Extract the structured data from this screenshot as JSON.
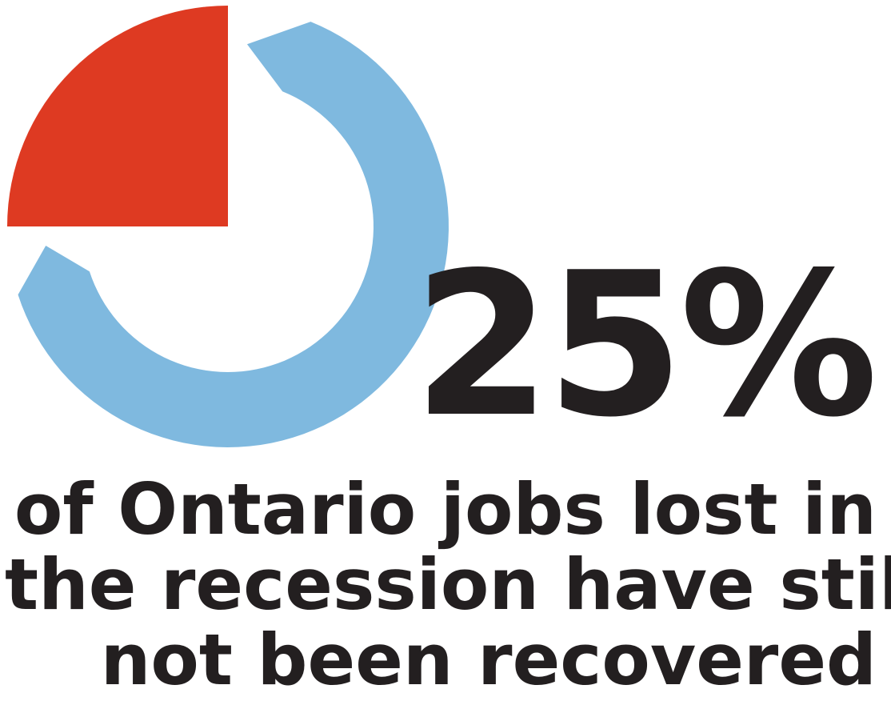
{
  "chart_data": {
    "type": "pie",
    "title": "",
    "slices": [
      {
        "name": "",
        "value": 25,
        "color": "#de3a22"
      },
      {
        "name": "",
        "value": 75,
        "color": "#7fb9df"
      }
    ],
    "value_label": "25%",
    "caption_lines": [
      "of Ontario jobs lost in",
      "the recession have still",
      "not been recovered"
    ]
  }
}
